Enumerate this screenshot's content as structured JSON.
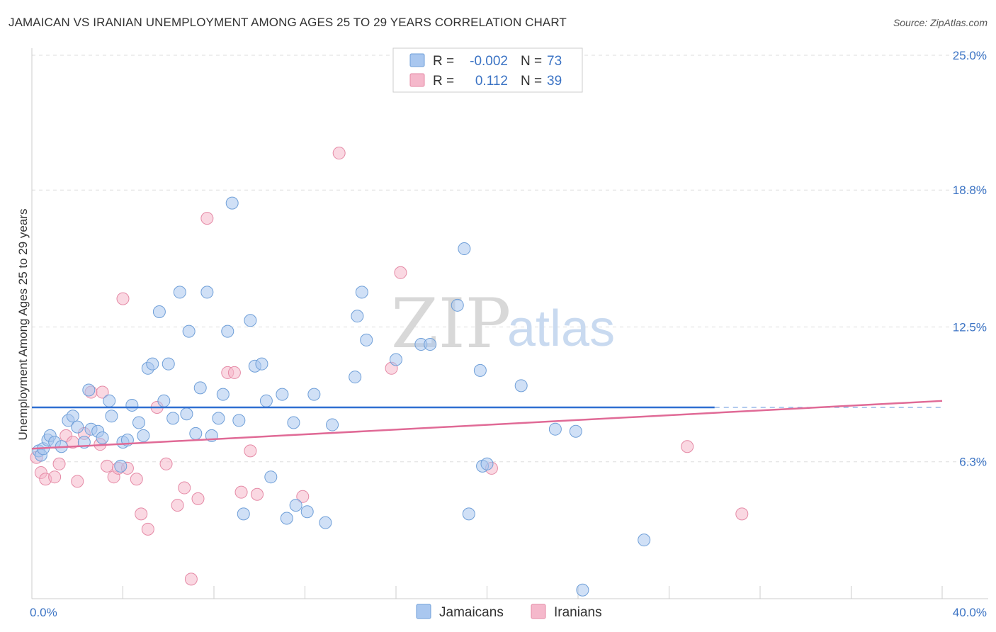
{
  "title": "JAMAICAN VS IRANIAN UNEMPLOYMENT AMONG AGES 25 TO 29 YEARS CORRELATION CHART",
  "source": "Source: ZipAtlas.com",
  "watermark": {
    "zip": "ZIP",
    "atlas": "atlas"
  },
  "colors": {
    "jamaicans_fill": "#a9c7ef",
    "jamaicans_stroke": "#6f9fd8",
    "jamaicans_line": "#2f6fd1",
    "iranians_fill": "#f5b8cb",
    "iranians_stroke": "#e58aa6",
    "iranians_line": "#e06a96",
    "grid": "#dddddd",
    "axis": "#cccccc"
  },
  "legend": {
    "rows": [
      {
        "r_label": "R =",
        "r_value": "-0.002",
        "n_label": "N =",
        "n_value": "73"
      },
      {
        "r_label": "R =",
        "r_value": "0.112",
        "n_label": "N =",
        "n_value": "39"
      }
    ]
  },
  "chart_data": {
    "type": "scatter",
    "title": "JAMAICAN VS IRANIAN UNEMPLOYMENT AMONG AGES 25 TO 29 YEARS CORRELATION CHART",
    "xlabel": "",
    "ylabel": "Unemployment Among Ages 25 to 29 years",
    "xlim": [
      0,
      40
    ],
    "ylim": [
      0,
      25
    ],
    "x_tick_labels": [
      "0.0%",
      "40.0%"
    ],
    "y_ticks": [
      6.3,
      12.5,
      18.8,
      25.0
    ],
    "y_tick_labels": [
      "6.3%",
      "12.5%",
      "18.8%",
      "25.0%"
    ],
    "grid": true,
    "legend_position": "top-center",
    "series": [
      {
        "name": "Jamaicans",
        "r": -0.002,
        "n": 73,
        "trend": {
          "x": [
            0,
            30.0
          ],
          "y": [
            8.8,
            8.8
          ],
          "dashed_extension_to": 40
        },
        "points": [
          [
            0.3,
            6.8
          ],
          [
            0.4,
            6.6
          ],
          [
            0.5,
            6.9
          ],
          [
            0.7,
            7.3
          ],
          [
            0.8,
            7.5
          ],
          [
            1.0,
            7.2
          ],
          [
            1.3,
            7.0
          ],
          [
            1.6,
            8.2
          ],
          [
            1.8,
            8.4
          ],
          [
            2.0,
            7.9
          ],
          [
            2.3,
            7.2
          ],
          [
            2.5,
            9.6
          ],
          [
            2.6,
            7.8
          ],
          [
            2.9,
            7.7
          ],
          [
            3.1,
            7.4
          ],
          [
            3.4,
            9.1
          ],
          [
            3.5,
            8.4
          ],
          [
            3.9,
            6.1
          ],
          [
            4.0,
            7.2
          ],
          [
            4.2,
            7.3
          ],
          [
            4.4,
            8.9
          ],
          [
            4.7,
            8.1
          ],
          [
            4.9,
            7.5
          ],
          [
            5.1,
            10.6
          ],
          [
            5.3,
            10.8
          ],
          [
            5.6,
            13.2
          ],
          [
            5.8,
            9.1
          ],
          [
            6.0,
            10.8
          ],
          [
            6.2,
            8.3
          ],
          [
            6.5,
            14.1
          ],
          [
            6.8,
            8.5
          ],
          [
            6.9,
            12.3
          ],
          [
            7.2,
            7.6
          ],
          [
            7.4,
            9.7
          ],
          [
            7.7,
            14.1
          ],
          [
            7.9,
            7.5
          ],
          [
            8.2,
            8.3
          ],
          [
            8.4,
            9.4
          ],
          [
            8.6,
            12.3
          ],
          [
            8.8,
            18.2
          ],
          [
            9.1,
            8.2
          ],
          [
            9.3,
            3.9
          ],
          [
            9.6,
            12.8
          ],
          [
            9.8,
            10.7
          ],
          [
            10.1,
            10.8
          ],
          [
            10.3,
            9.1
          ],
          [
            10.5,
            5.6
          ],
          [
            11.0,
            9.4
          ],
          [
            11.2,
            3.7
          ],
          [
            11.5,
            8.1
          ],
          [
            11.6,
            4.3
          ],
          [
            12.1,
            4.0
          ],
          [
            12.4,
            9.4
          ],
          [
            12.9,
            3.5
          ],
          [
            13.2,
            8.0
          ],
          [
            14.2,
            10.2
          ],
          [
            14.3,
            13.0
          ],
          [
            14.5,
            14.1
          ],
          [
            14.7,
            11.9
          ],
          [
            16.0,
            11.0
          ],
          [
            17.1,
            11.7
          ],
          [
            17.5,
            11.7
          ],
          [
            18.7,
            13.5
          ],
          [
            19.0,
            16.1
          ],
          [
            19.2,
            3.9
          ],
          [
            19.7,
            10.5
          ],
          [
            19.8,
            6.1
          ],
          [
            20.0,
            6.2
          ],
          [
            21.5,
            9.8
          ],
          [
            23.0,
            7.8
          ],
          [
            23.9,
            7.7
          ],
          [
            24.2,
            0.4
          ],
          [
            26.9,
            2.7
          ]
        ]
      },
      {
        "name": "Iranians",
        "r": 0.112,
        "n": 39,
        "trend": {
          "x": [
            0,
            40
          ],
          "y": [
            6.9,
            9.1
          ]
        },
        "points": [
          [
            0.2,
            6.5
          ],
          [
            0.4,
            5.8
          ],
          [
            0.6,
            5.5
          ],
          [
            1.0,
            5.6
          ],
          [
            1.2,
            6.2
          ],
          [
            1.5,
            7.5
          ],
          [
            1.8,
            7.2
          ],
          [
            2.0,
            5.4
          ],
          [
            2.3,
            7.6
          ],
          [
            2.6,
            9.5
          ],
          [
            3.0,
            7.1
          ],
          [
            3.1,
            9.5
          ],
          [
            3.3,
            6.1
          ],
          [
            3.6,
            5.6
          ],
          [
            3.8,
            6.0
          ],
          [
            4.0,
            13.8
          ],
          [
            4.2,
            6.0
          ],
          [
            4.6,
            5.5
          ],
          [
            4.8,
            3.9
          ],
          [
            5.1,
            3.2
          ],
          [
            5.5,
            8.8
          ],
          [
            5.9,
            6.2
          ],
          [
            6.4,
            4.3
          ],
          [
            6.7,
            5.1
          ],
          [
            7.0,
            0.9
          ],
          [
            7.3,
            4.6
          ],
          [
            7.7,
            17.5
          ],
          [
            8.6,
            10.4
          ],
          [
            8.9,
            10.4
          ],
          [
            9.2,
            4.9
          ],
          [
            9.6,
            6.8
          ],
          [
            9.9,
            4.8
          ],
          [
            11.9,
            4.7
          ],
          [
            13.5,
            20.5
          ],
          [
            15.8,
            10.6
          ],
          [
            16.2,
            15.0
          ],
          [
            20.2,
            6.0
          ],
          [
            28.8,
            7.0
          ],
          [
            31.2,
            3.9
          ]
        ]
      }
    ]
  },
  "bottom_legend": {
    "items": [
      "Jamaicans",
      "Iranians"
    ]
  }
}
